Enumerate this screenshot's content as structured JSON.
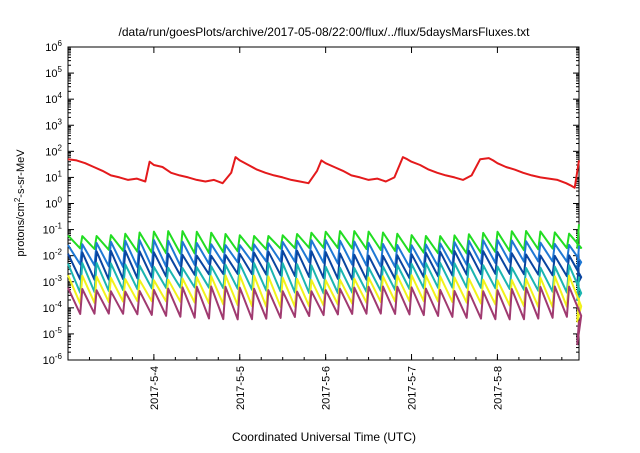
{
  "chart_data": {
    "type": "line",
    "title": "/data/run/goesPlots/archive/2017-05-08/22:00/flux/../flux/5daysMarsFluxes.txt",
    "xlabel": "Coordinated Universal Time (UTC)",
    "ylabel": "protons/cm2-s-sr-MeV",
    "xlim_days": [
      3.0,
      8.95
    ],
    "x_ticks": [
      {
        "label": "2017-5-4",
        "day": 4
      },
      {
        "label": "2017-5-5",
        "day": 5
      },
      {
        "label": "2017-5-6",
        "day": 6
      },
      {
        "label": "2017-5-7",
        "day": 7
      },
      {
        "label": "2017-5-8",
        "day": 8
      }
    ],
    "y_scale": "log",
    "ylim": [
      1e-06,
      1000000.0
    ],
    "y_ticks": [
      {
        "base": "10",
        "exp": "6",
        "value": 6
      },
      {
        "base": "10",
        "exp": "5",
        "value": 5
      },
      {
        "base": "10",
        "exp": "4",
        "value": 4
      },
      {
        "base": "10",
        "exp": "3",
        "value": 3
      },
      {
        "base": "10",
        "exp": "2",
        "value": 2
      },
      {
        "base": "10",
        "exp": "1",
        "value": 1
      },
      {
        "base": "10",
        "exp": "0",
        "value": 0
      },
      {
        "base": "10",
        "exp": "-1",
        "value": -1
      },
      {
        "base": "10",
        "exp": "-2",
        "value": -2
      },
      {
        "base": "10",
        "exp": "-3",
        "value": -3
      },
      {
        "base": "10",
        "exp": "-4",
        "value": -4
      },
      {
        "base": "10",
        "exp": "-5",
        "value": -5
      },
      {
        "base": "10",
        "exp": "-6",
        "value": -6
      }
    ],
    "grid": false,
    "legend": "none",
    "series": [
      {
        "color": "#e41a1c",
        "x": [
          3.0,
          3.1,
          3.2,
          3.3,
          3.4,
          3.5,
          3.6,
          3.7,
          3.8,
          3.9,
          3.95,
          4.0,
          4.1,
          4.2,
          4.3,
          4.4,
          4.5,
          4.6,
          4.7,
          4.8,
          4.9,
          4.95,
          5.0,
          5.1,
          5.2,
          5.3,
          5.4,
          5.5,
          5.6,
          5.7,
          5.8,
          5.9,
          5.95,
          6.0,
          6.1,
          6.2,
          6.3,
          6.4,
          6.5,
          6.6,
          6.7,
          6.8,
          6.9,
          6.95,
          7.0,
          7.1,
          7.2,
          7.3,
          7.4,
          7.5,
          7.6,
          7.7,
          7.8,
          7.9,
          7.95,
          8.0,
          8.1,
          8.2,
          8.3,
          8.4,
          8.5,
          8.6,
          8.7,
          8.8,
          8.85,
          8.9,
          8.95
        ],
        "y": [
          50,
          45,
          35,
          25,
          18,
          12,
          10,
          8,
          9,
          7,
          40,
          30,
          25,
          15,
          12,
          10,
          8,
          7,
          8,
          6,
          15,
          60,
          45,
          30,
          20,
          15,
          12,
          10,
          8,
          7,
          6,
          18,
          45,
          35,
          25,
          18,
          12,
          10,
          8,
          9,
          7,
          10,
          60,
          50,
          40,
          30,
          20,
          15,
          12,
          10,
          8,
          12,
          50,
          55,
          45,
          35,
          25,
          20,
          15,
          12,
          10,
          9,
          8,
          6,
          5,
          4,
          45
        ]
      },
      {
        "color": "#22dd22",
        "base": 0.02,
        "amp": 4,
        "period": 0.1667,
        "end": 0.02
      },
      {
        "color": "#1f78d4",
        "base": 0.006,
        "amp": 6,
        "period": 0.1667,
        "end": 0.003
      },
      {
        "color": "#0a45a0",
        "base": 0.002,
        "amp": 7,
        "period": 0.1667,
        "end": 0.0008
      },
      {
        "color": "#1bb5b0",
        "base": 0.0006,
        "amp": 8,
        "period": 0.1667,
        "end": 0.0002
      },
      {
        "color": "#f2f21a",
        "base": 0.00018,
        "amp": 9,
        "period": 0.1667,
        "end": 3e-05
      },
      {
        "color": "#a03a70",
        "base": 6e-05,
        "amp": 10,
        "period": 0.1667,
        "end": 4e-06
      }
    ]
  }
}
